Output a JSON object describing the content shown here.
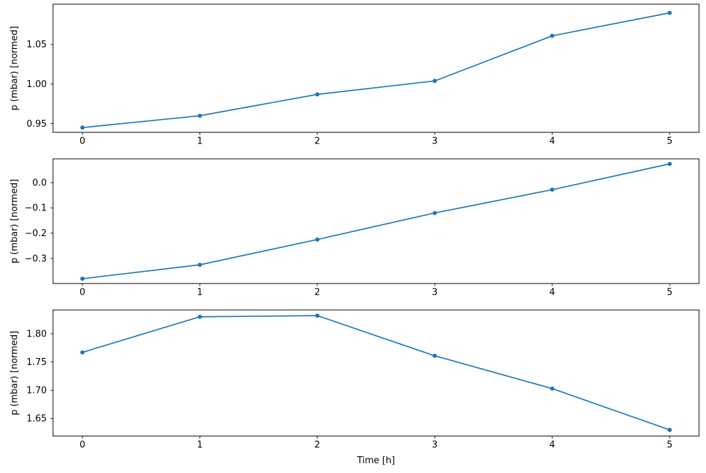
{
  "figure": {
    "background": "#ffffff",
    "line_color": "#1f77b4",
    "xlabel": "Time [h]",
    "ylabel": "p (mbar) [normed]"
  },
  "chart_data": [
    {
      "type": "line",
      "title": "",
      "x": [
        0,
        1,
        2,
        3,
        4,
        5
      ],
      "values": [
        0.945,
        0.96,
        0.987,
        1.004,
        1.061,
        1.09
      ],
      "xlabel": "",
      "ylabel": "p (mbar) [normed]",
      "xticks": [
        0,
        1,
        2,
        3,
        4,
        5
      ],
      "xtick_labels": [
        "0",
        "1",
        "2",
        "3",
        "4",
        "5"
      ],
      "yticks": [
        0.95,
        1.0,
        1.05
      ],
      "ytick_labels": [
        "0.95",
        "1.00",
        "1.05"
      ],
      "xlim": [
        -0.25,
        5.25
      ],
      "ylim": [
        0.939,
        1.101
      ],
      "grid": false,
      "legend": null,
      "line_color": "#1f77b4",
      "marker": "dot"
    },
    {
      "type": "line",
      "title": "",
      "x": [
        0,
        1,
        2,
        3,
        4,
        5
      ],
      "values": [
        -0.38,
        -0.325,
        -0.225,
        -0.12,
        -0.028,
        0.074
      ],
      "xlabel": "",
      "ylabel": "p (mbar) [normed]",
      "xticks": [
        0,
        1,
        2,
        3,
        4,
        5
      ],
      "xtick_labels": [
        "0",
        "1",
        "2",
        "3",
        "4",
        "5"
      ],
      "yticks": [
        0.0,
        -0.1,
        -0.2,
        -0.3
      ],
      "ytick_labels": [
        "0.0",
        "−0.1",
        "−0.2",
        "−0.3"
      ],
      "xlim": [
        -0.25,
        5.25
      ],
      "ylim": [
        -0.399,
        0.094
      ],
      "grid": false,
      "legend": null,
      "line_color": "#1f77b4",
      "marker": "dot"
    },
    {
      "type": "line",
      "title": "",
      "x": [
        0,
        1,
        2,
        3,
        4,
        5
      ],
      "values": [
        1.767,
        1.83,
        1.832,
        1.761,
        1.703,
        1.63
      ],
      "xlabel": "Time [h]",
      "ylabel": "p (mbar) [normed]",
      "xticks": [
        0,
        1,
        2,
        3,
        4,
        5
      ],
      "xtick_labels": [
        "0",
        "1",
        "2",
        "3",
        "4",
        "5"
      ],
      "yticks": [
        1.65,
        1.7,
        1.75,
        1.8
      ],
      "ytick_labels": [
        "1.65",
        "1.70",
        "1.75",
        "1.80"
      ],
      "xlim": [
        -0.25,
        5.25
      ],
      "ylim": [
        1.619,
        1.842
      ],
      "grid": false,
      "legend": null,
      "line_color": "#1f77b4",
      "marker": "dot"
    }
  ]
}
